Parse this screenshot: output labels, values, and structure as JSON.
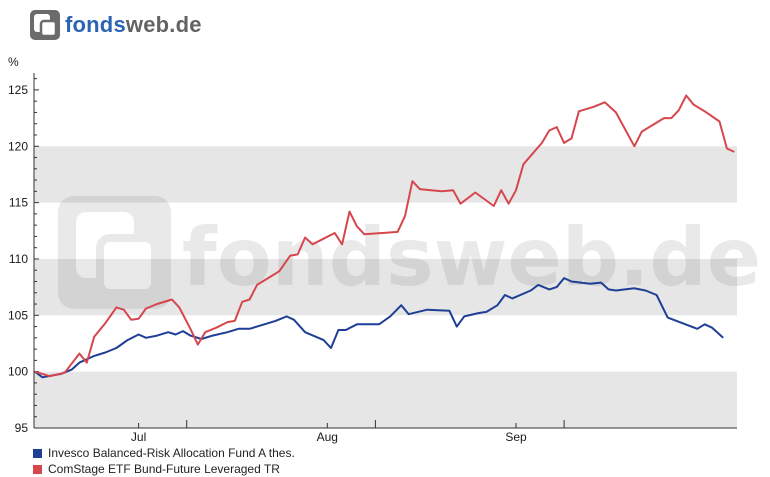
{
  "brand": {
    "part1": "fonds",
    "part2": "web.de",
    "watermark": "fondsweb.de"
  },
  "colors": {
    "series1": "#1f3e96",
    "series2": "#d6474d",
    "band": "#e6e6e6",
    "brand_blue": "#2a64b2",
    "brand_gray": "#636363"
  },
  "chart_data": {
    "type": "line",
    "ylabel": "%",
    "ylim": [
      95,
      126.5
    ],
    "yticks": [
      95,
      100,
      105,
      110,
      115,
      120,
      125
    ],
    "grid": "horizontal alternating bands",
    "legend_position": "bottom-left",
    "x_months": [
      {
        "label": "Jul",
        "index": 28
      },
      {
        "label": "Aug",
        "index": 79
      },
      {
        "label": "Sep",
        "index": 130
      }
    ],
    "x_count": 157,
    "series": [
      {
        "name": "Invesco Balanced-Risk Allocation Fund A thes.",
        "color": "#1f3e96",
        "points": [
          [
            0,
            100.0
          ],
          [
            2,
            99.5
          ],
          [
            7,
            99.8
          ],
          [
            10,
            100.2
          ],
          [
            12,
            100.8
          ],
          [
            14,
            101.1
          ],
          [
            16,
            101.4
          ],
          [
            19,
            101.7
          ],
          [
            22,
            102.1
          ],
          [
            25,
            102.8
          ],
          [
            28,
            103.3
          ],
          [
            30,
            103.0
          ],
          [
            33,
            103.2
          ],
          [
            36,
            103.5
          ],
          [
            38,
            103.3
          ],
          [
            40,
            103.6
          ],
          [
            42,
            103.2
          ],
          [
            45,
            102.9
          ],
          [
            48,
            103.2
          ],
          [
            52,
            103.5
          ],
          [
            55,
            103.8
          ],
          [
            58,
            103.8
          ],
          [
            62,
            104.2
          ],
          [
            65,
            104.5
          ],
          [
            68,
            104.9
          ],
          [
            70,
            104.6
          ],
          [
            73,
            103.5
          ],
          [
            78,
            102.8
          ],
          [
            80,
            102.1
          ],
          [
            82,
            103.7
          ],
          [
            84,
            103.7
          ],
          [
            87,
            104.2
          ],
          [
            93,
            104.2
          ],
          [
            96,
            104.9
          ],
          [
            99,
            105.9
          ],
          [
            101,
            105.1
          ],
          [
            106,
            105.5
          ],
          [
            112,
            105.4
          ],
          [
            114,
            104.0
          ],
          [
            116,
            104.9
          ],
          [
            120,
            105.2
          ],
          [
            122,
            105.3
          ],
          [
            125,
            105.9
          ],
          [
            127,
            106.8
          ],
          [
            129,
            106.5
          ],
          [
            134,
            107.2
          ],
          [
            136,
            107.7
          ],
          [
            139,
            107.3
          ],
          [
            141,
            107.5
          ],
          [
            143,
            108.3
          ],
          [
            145,
            108.0
          ],
          [
            150,
            107.8
          ],
          [
            153,
            107.9
          ],
          [
            155,
            107.3
          ],
          [
            157,
            107.2
          ],
          [
            162,
            107.4
          ],
          [
            165,
            107.2
          ],
          [
            168,
            106.8
          ],
          [
            171,
            104.8
          ],
          [
            175,
            104.3
          ],
          [
            179,
            103.8
          ],
          [
            181,
            104.2
          ],
          [
            183,
            103.9
          ],
          [
            186,
            103.0
          ]
        ]
      },
      {
        "name": "ComStage ETF Bund-Future Leveraged TR",
        "color": "#d6474d",
        "points": [
          [
            0,
            100.0
          ],
          [
            4,
            99.6
          ],
          [
            8,
            99.9
          ],
          [
            12,
            101.6
          ],
          [
            14,
            100.8
          ],
          [
            16,
            103.1
          ],
          [
            19,
            104.3
          ],
          [
            22,
            105.7
          ],
          [
            24,
            105.5
          ],
          [
            26,
            104.6
          ],
          [
            28,
            104.7
          ],
          [
            30,
            105.6
          ],
          [
            33,
            106.0
          ],
          [
            37,
            106.4
          ],
          [
            39,
            105.7
          ],
          [
            42,
            103.8
          ],
          [
            44,
            102.4
          ],
          [
            46,
            103.5
          ],
          [
            49,
            103.9
          ],
          [
            52,
            104.4
          ],
          [
            54,
            104.5
          ],
          [
            56,
            106.2
          ],
          [
            58,
            106.4
          ],
          [
            60,
            107.7
          ],
          [
            63,
            108.3
          ],
          [
            66,
            108.9
          ],
          [
            69,
            110.3
          ],
          [
            71,
            110.4
          ],
          [
            73,
            111.9
          ],
          [
            75,
            111.3
          ],
          [
            78,
            111.8
          ],
          [
            81,
            112.3
          ],
          [
            83,
            111.3
          ],
          [
            85,
            114.2
          ],
          [
            87,
            112.9
          ],
          [
            89,
            112.2
          ],
          [
            94,
            112.3
          ],
          [
            98,
            112.4
          ],
          [
            100,
            113.8
          ],
          [
            102,
            116.9
          ],
          [
            104,
            116.2
          ],
          [
            107,
            116.1
          ],
          [
            110,
            116.0
          ],
          [
            113,
            116.1
          ],
          [
            115,
            114.9
          ],
          [
            119,
            115.9
          ],
          [
            124,
            114.7
          ],
          [
            126,
            116.1
          ],
          [
            128,
            114.9
          ],
          [
            130,
            116.1
          ],
          [
            132,
            118.4
          ],
          [
            137,
            120.3
          ],
          [
            139,
            121.4
          ],
          [
            141,
            121.7
          ],
          [
            143,
            120.3
          ],
          [
            145,
            120.7
          ],
          [
            147,
            123.1
          ],
          [
            151,
            123.5
          ],
          [
            154,
            123.9
          ],
          [
            157,
            123.0
          ],
          [
            162,
            120.0
          ],
          [
            164,
            121.3
          ],
          [
            168,
            122.1
          ],
          [
            170,
            122.5
          ],
          [
            172,
            122.5
          ],
          [
            174,
            123.2
          ],
          [
            176,
            124.5
          ],
          [
            178,
            123.7
          ],
          [
            181,
            123.1
          ],
          [
            185,
            122.2
          ],
          [
            187,
            119.8
          ],
          [
            189,
            119.5
          ]
        ]
      }
    ]
  }
}
